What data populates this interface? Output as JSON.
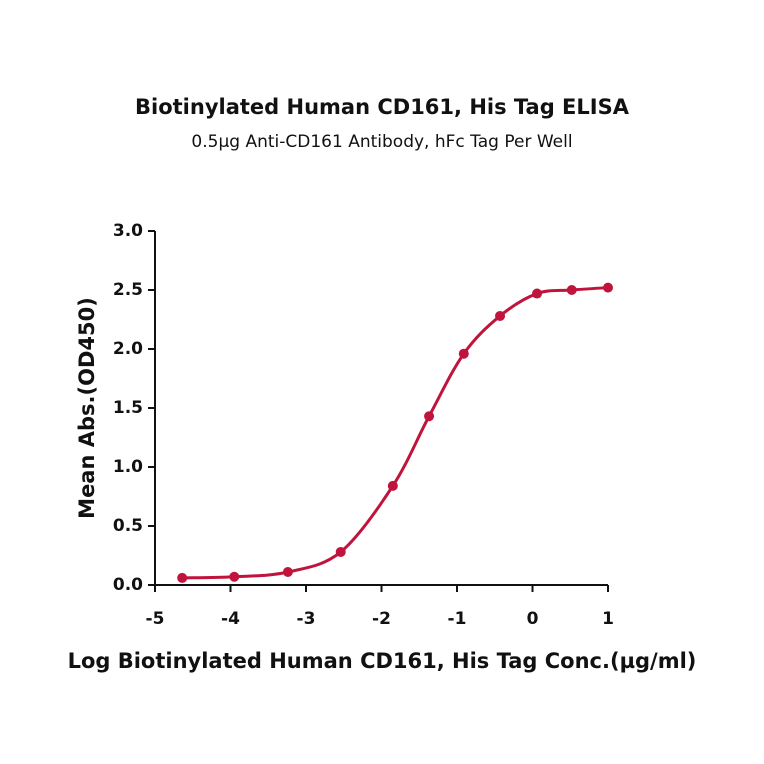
{
  "chart_data": {
    "type": "scatter",
    "title": "Biotinylated Human CD161, His Tag ELISA",
    "subtitle": "0.5µg Anti-CD161 Antibody, hFc Tag Per Well",
    "x_label": "Log Biotinylated Human CD161, His Tag Conc.(µg/ml)",
    "y_label": "Mean Abs.(OD450)",
    "series": [
      {
        "color": "#c0143c",
        "x": [
          -4.64,
          -3.95,
          -3.24,
          -2.54,
          -1.85,
          -1.37,
          -0.91,
          -0.43,
          0.06,
          0.52,
          1.0
        ],
        "values": [
          0.06,
          0.07,
          0.11,
          0.28,
          0.84,
          1.43,
          1.96,
          2.28,
          2.47,
          2.5,
          2.52
        ]
      }
    ],
    "xlim": [
      -5,
      1
    ],
    "xticks": [
      -5,
      -4,
      -3,
      -2,
      -1,
      0,
      1
    ],
    "ylim": [
      0,
      3
    ],
    "yticks": [
      {
        "value": 0,
        "label": "0.0"
      },
      0.5,
      {
        "value": 1,
        "label": "1.0"
      },
      1.5,
      {
        "value": 2,
        "label": "2.0"
      },
      2.5,
      {
        "value": 3,
        "label": "3.0"
      }
    ]
  }
}
